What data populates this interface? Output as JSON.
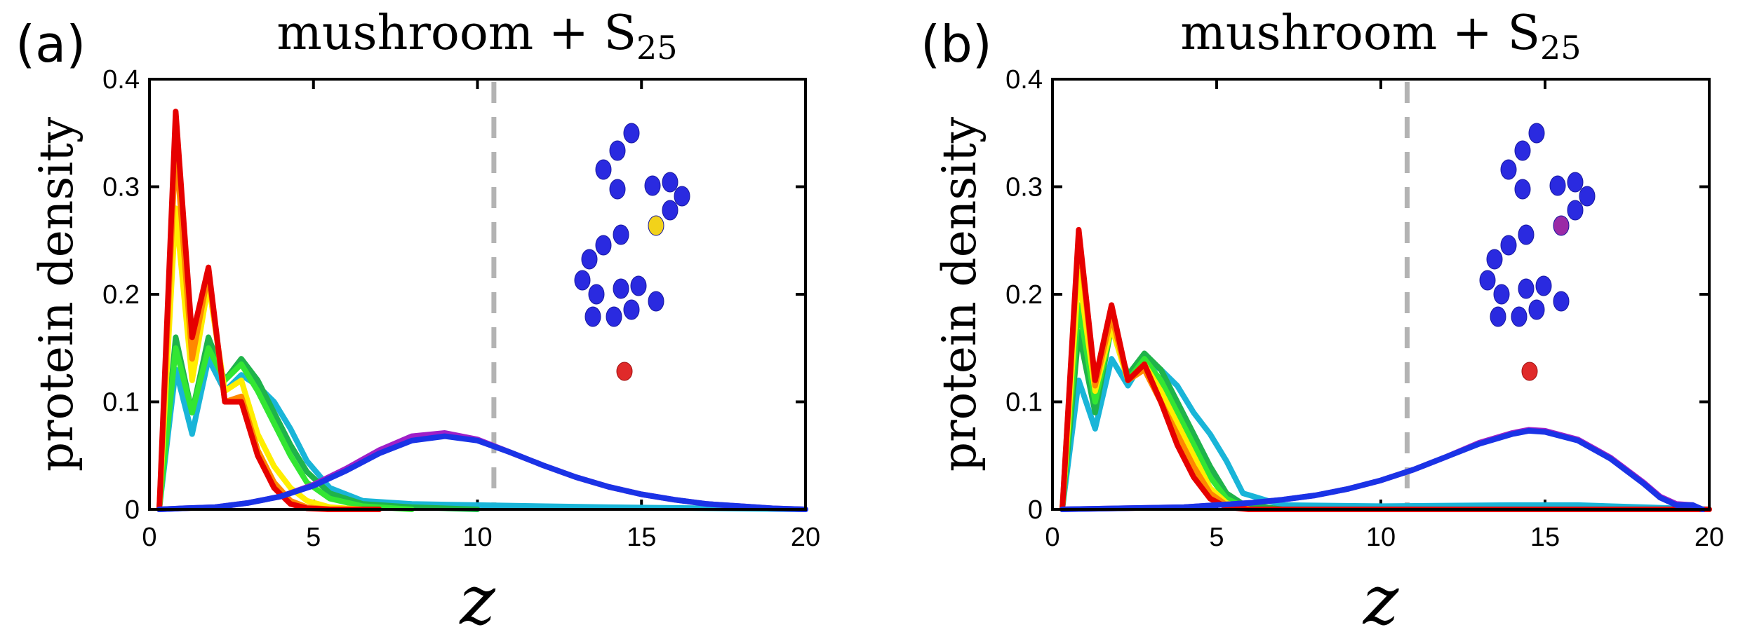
{
  "chart_data": [
    {
      "type": "line",
      "panel_label": "(a)",
      "title": "mushroom + S",
      "title_subscript": "25",
      "xlabel": "z",
      "ylabel": "protein density",
      "xlim": [
        0,
        20
      ],
      "ylim": [
        0,
        0.4
      ],
      "x_ticks": [
        "0",
        "5",
        "10",
        "15",
        "20"
      ],
      "y_ticks": [
        "0",
        "0.1",
        "0.2",
        "0.3",
        "0.4"
      ],
      "reference_x": 10.5,
      "inset": {
        "highlight_bead": "yellow",
        "end_bead": "red",
        "body_beads": "blue"
      },
      "series": [
        {
          "name": "cyan",
          "color": "#19b5d8",
          "x": [
            0.3,
            0.8,
            1.3,
            1.8,
            2.3,
            2.8,
            3.3,
            3.8,
            4.3,
            4.8,
            5.5,
            6.5,
            8,
            10,
            14,
            20
          ],
          "y": [
            0,
            0.13,
            0.07,
            0.14,
            0.11,
            0.125,
            0.115,
            0.1,
            0.075,
            0.045,
            0.02,
            0.008,
            0.005,
            0.004,
            0.002,
            0
          ]
        },
        {
          "name": "green",
          "color": "#1fb34a",
          "x": [
            0.3,
            0.8,
            1.3,
            1.8,
            2.3,
            2.8,
            3.3,
            3.8,
            4.3,
            4.8,
            5.5,
            6.5,
            8,
            10
          ],
          "y": [
            0,
            0.16,
            0.09,
            0.16,
            0.12,
            0.14,
            0.12,
            0.09,
            0.06,
            0.035,
            0.015,
            0.005,
            0.002,
            0
          ]
        },
        {
          "name": "lime",
          "color": "#33e633",
          "x": [
            0.3,
            0.8,
            1.3,
            1.8,
            2.3,
            2.8,
            3.3,
            3.8,
            4.3,
            4.8,
            5.5,
            6.5,
            8
          ],
          "y": [
            0,
            0.15,
            0.09,
            0.15,
            0.12,
            0.135,
            0.11,
            0.08,
            0.05,
            0.025,
            0.01,
            0.003,
            0
          ]
        },
        {
          "name": "yellow",
          "color": "#ffee00",
          "x": [
            0.3,
            0.8,
            1.3,
            1.8,
            2.3,
            2.8,
            3.3,
            3.8,
            4.3,
            4.8,
            5.5,
            6.5
          ],
          "y": [
            0,
            0.28,
            0.12,
            0.21,
            0.11,
            0.12,
            0.07,
            0.04,
            0.02,
            0.008,
            0.002,
            0
          ]
        },
        {
          "name": "orange",
          "color": "#ff8800",
          "x": [
            0.3,
            0.8,
            1.3,
            1.8,
            2.3,
            2.8,
            3.3,
            3.8,
            4.3,
            4.8,
            5.5
          ],
          "y": [
            0,
            0.34,
            0.14,
            0.22,
            0.1,
            0.105,
            0.055,
            0.025,
            0.008,
            0.002,
            0
          ]
        },
        {
          "name": "red",
          "color": "#e60000",
          "x": [
            0.3,
            0.8,
            1.3,
            1.8,
            2.3,
            2.8,
            3.3,
            3.8,
            4.3,
            4.8,
            5.5,
            7
          ],
          "y": [
            0,
            0.37,
            0.16,
            0.225,
            0.1,
            0.1,
            0.05,
            0.02,
            0.005,
            0.001,
            0,
            0
          ]
        },
        {
          "name": "purple",
          "color": "#a01fc8",
          "x": [
            0.3,
            1,
            2,
            3,
            4,
            5,
            6,
            7,
            8,
            9,
            10,
            11,
            12,
            13,
            14,
            15,
            16,
            17,
            18,
            19,
            20
          ],
          "y": [
            0,
            0.001,
            0.002,
            0.006,
            0.012,
            0.023,
            0.038,
            0.055,
            0.068,
            0.071,
            0.065,
            0.053,
            0.041,
            0.03,
            0.021,
            0.014,
            0.009,
            0.005,
            0.003,
            0.001,
            0
          ]
        },
        {
          "name": "blue",
          "color": "#1a33e6",
          "x": [
            0.3,
            1,
            2,
            3,
            4,
            5,
            6,
            7,
            8,
            9,
            10,
            11,
            12,
            13,
            14,
            15,
            16,
            17,
            18,
            19,
            20
          ],
          "y": [
            0,
            0.001,
            0.002,
            0.006,
            0.012,
            0.022,
            0.036,
            0.052,
            0.064,
            0.068,
            0.064,
            0.053,
            0.041,
            0.03,
            0.021,
            0.014,
            0.009,
            0.005,
            0.003,
            0.001,
            0
          ]
        }
      ]
    },
    {
      "type": "line",
      "panel_label": "(b)",
      "title": "mushroom + S",
      "title_subscript": "25",
      "xlabel": "z",
      "ylabel": "protein density",
      "xlim": [
        0,
        20
      ],
      "ylim": [
        0,
        0.4
      ],
      "x_ticks": [
        "0",
        "5",
        "10",
        "15",
        "20"
      ],
      "y_ticks": [
        "0",
        "0.1",
        "0.2",
        "0.3",
        "0.4"
      ],
      "reference_x": 10.8,
      "inset": {
        "highlight_bead": "purple",
        "end_bead": "red",
        "body_beads": "blue"
      },
      "series": [
        {
          "name": "cyan",
          "color": "#19b5d8",
          "x": [
            0.3,
            0.8,
            1.3,
            1.8,
            2.3,
            2.8,
            3.3,
            3.8,
            4.3,
            4.8,
            5.3,
            5.8,
            7,
            10,
            14,
            16,
            18,
            20
          ],
          "y": [
            0,
            0.12,
            0.075,
            0.14,
            0.115,
            0.14,
            0.13,
            0.115,
            0.09,
            0.07,
            0.045,
            0.015,
            0.004,
            0.003,
            0.004,
            0.004,
            0.002,
            0
          ]
        },
        {
          "name": "green",
          "color": "#1fb34a",
          "x": [
            0.3,
            0.8,
            1.3,
            1.8,
            2.3,
            2.8,
            3.3,
            3.8,
            4.3,
            4.8,
            5.3,
            5.8,
            7
          ],
          "y": [
            0,
            0.165,
            0.09,
            0.17,
            0.125,
            0.145,
            0.13,
            0.1,
            0.07,
            0.04,
            0.015,
            0.005,
            0
          ]
        },
        {
          "name": "lime",
          "color": "#33e633",
          "x": [
            0.3,
            0.8,
            1.3,
            1.8,
            2.3,
            2.8,
            3.3,
            3.8,
            4.3,
            4.8,
            5.3,
            6
          ],
          "y": [
            0,
            0.19,
            0.1,
            0.17,
            0.12,
            0.14,
            0.12,
            0.09,
            0.06,
            0.03,
            0.01,
            0
          ]
        },
        {
          "name": "yellow",
          "color": "#ffee00",
          "x": [
            0.3,
            0.8,
            1.3,
            1.8,
            2.3,
            2.8,
            3.3,
            3.8,
            4.3,
            4.8,
            5.3,
            6
          ],
          "y": [
            0,
            0.22,
            0.11,
            0.17,
            0.12,
            0.135,
            0.11,
            0.08,
            0.05,
            0.02,
            0.006,
            0
          ]
        },
        {
          "name": "orange",
          "color": "#ff8800",
          "x": [
            0.3,
            0.8,
            1.3,
            1.8,
            2.3,
            2.8,
            3.3,
            3.8,
            4.3,
            4.8,
            5.3,
            6
          ],
          "y": [
            0,
            0.255,
            0.115,
            0.18,
            0.12,
            0.13,
            0.1,
            0.07,
            0.04,
            0.015,
            0.004,
            0
          ]
        },
        {
          "name": "red",
          "color": "#e60000",
          "x": [
            0.3,
            0.8,
            1.3,
            1.8,
            2.3,
            2.8,
            3.3,
            3.8,
            4.3,
            4.8,
            5.3,
            6,
            8,
            20
          ],
          "y": [
            0,
            0.26,
            0.12,
            0.19,
            0.12,
            0.135,
            0.1,
            0.06,
            0.03,
            0.01,
            0.002,
            0,
            0,
            0
          ]
        },
        {
          "name": "purple",
          "color": "#a01fc8",
          "x": [
            0.3,
            2,
            4,
            6,
            7,
            8,
            9,
            10,
            11,
            12,
            13,
            14,
            14.5,
            15,
            16,
            17,
            18,
            18.5,
            19,
            19.5
          ],
          "y": [
            0,
            0.001,
            0.002,
            0.006,
            0.009,
            0.013,
            0.019,
            0.027,
            0.037,
            0.049,
            0.062,
            0.071,
            0.074,
            0.073,
            0.065,
            0.048,
            0.025,
            0.012,
            0.005,
            0.004
          ]
        },
        {
          "name": "blue",
          "color": "#1a33e6",
          "x": [
            0.3,
            2,
            4,
            6,
            7,
            8,
            9,
            10,
            11,
            12,
            13,
            14,
            14.5,
            15,
            16,
            17,
            18,
            18.5,
            19,
            19.5,
            19.8
          ],
          "y": [
            0,
            0.001,
            0.002,
            0.006,
            0.009,
            0.013,
            0.019,
            0.027,
            0.037,
            0.049,
            0.061,
            0.07,
            0.073,
            0.072,
            0.064,
            0.047,
            0.024,
            0.011,
            0.004,
            0.004,
            0
          ]
        }
      ]
    }
  ]
}
